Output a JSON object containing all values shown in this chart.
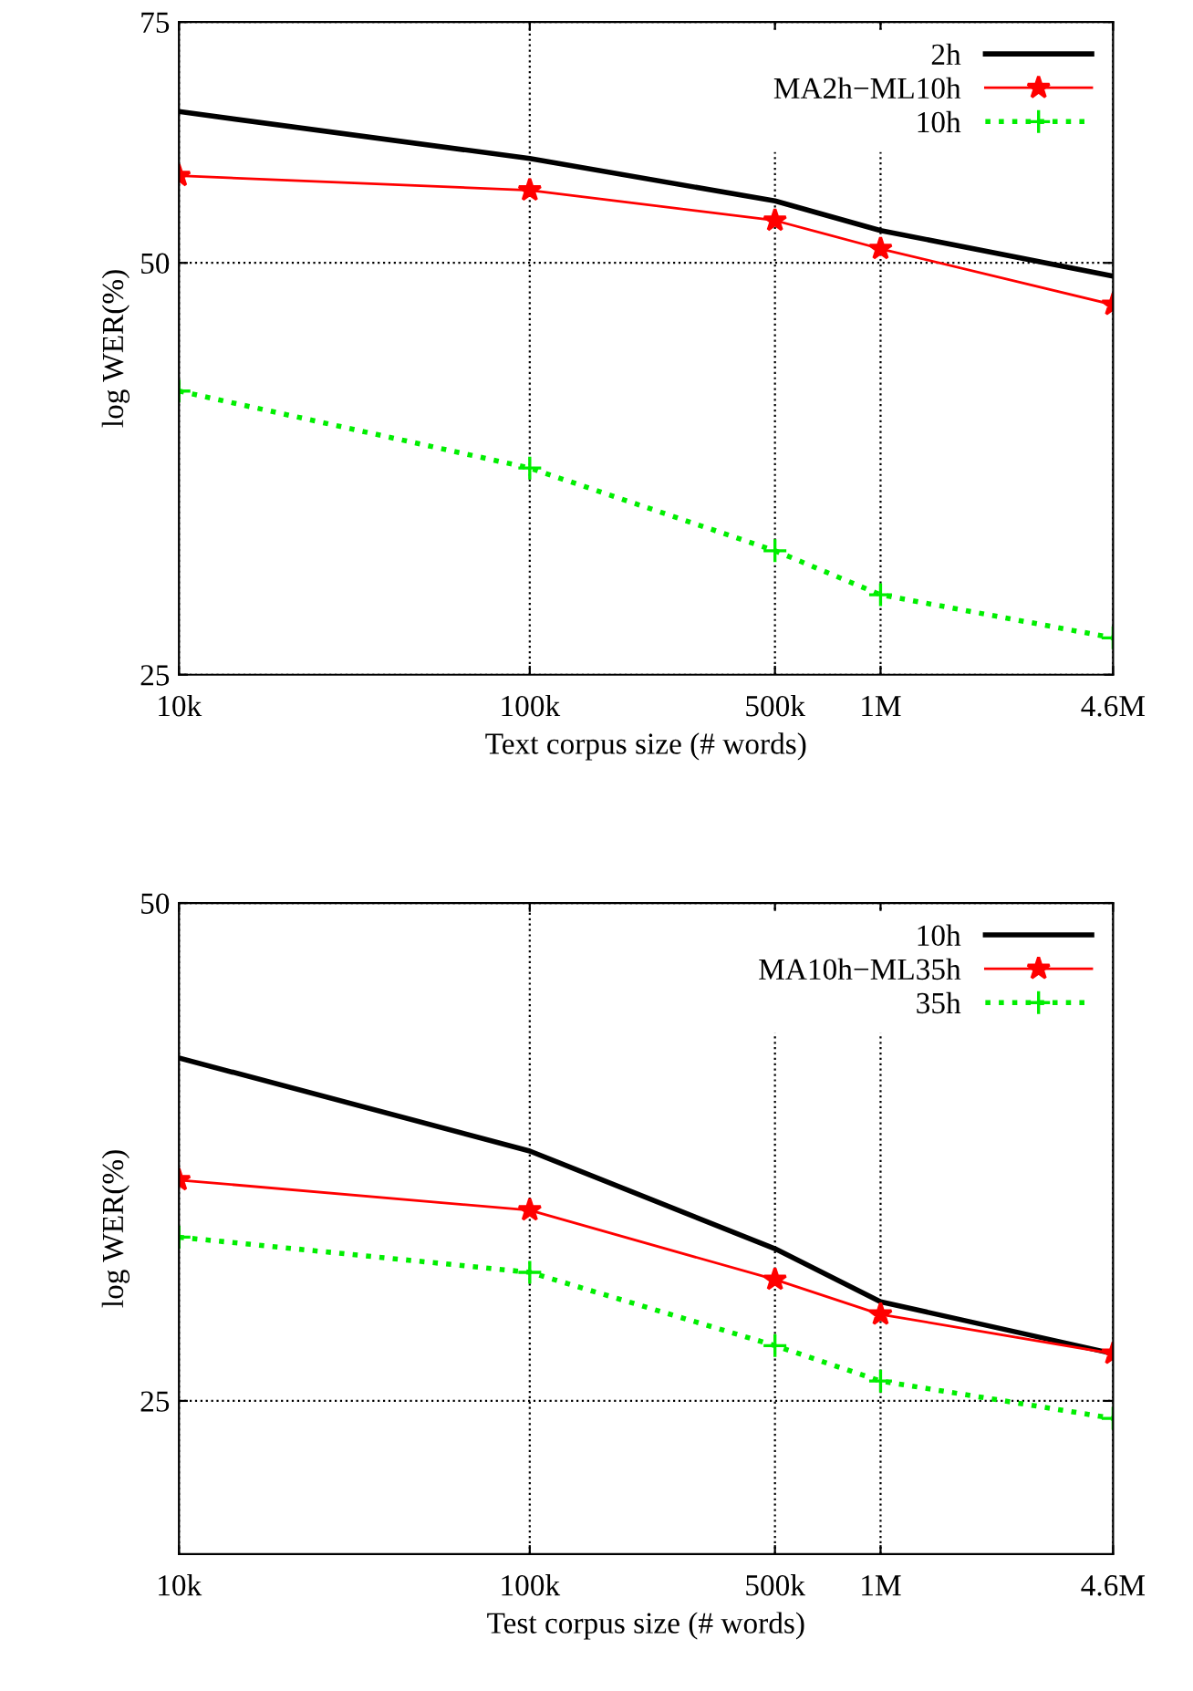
{
  "chart_data": [
    {
      "type": "line",
      "xlabel": "Text corpus size (# words)",
      "ylabel": "log WER(%)",
      "log": "xy",
      "grid": true,
      "legend": "top right",
      "x": [
        10000,
        100000,
        500000,
        1000000,
        4600000
      ],
      "xlim": [
        10000,
        4600000
      ],
      "xticks": [
        {
          "value": 10000,
          "label": "10k"
        },
        {
          "value": 100000,
          "label": "100k"
        },
        {
          "value": 500000,
          "label": "500k"
        },
        {
          "value": 1000000,
          "label": "1M"
        },
        {
          "value": 4600000,
          "label": "4.6M"
        }
      ],
      "ylim": [
        25,
        75
      ],
      "yticks": [
        25,
        50,
        75
      ],
      "series": [
        {
          "name": "2h",
          "color": "#000000",
          "values": [
            64.5,
            59.6,
            55.5,
            52.8,
            48.9
          ],
          "marker": "none",
          "line_style": "solid"
        },
        {
          "name": "MA2h−ML10h",
          "color": "#ff0000",
          "values": [
            57.9,
            56.5,
            53.7,
            51.2,
            46.6
          ],
          "marker": "star",
          "line_style": "solid"
        },
        {
          "name": "10h",
          "color": "#00ee00",
          "values": [
            40.3,
            35.4,
            30.8,
            28.6,
            26.6
          ],
          "marker": "cross",
          "line_style": "dotted"
        }
      ]
    },
    {
      "type": "line",
      "xlabel": "Test corpus size (# words)",
      "ylabel": "log WER(%)",
      "log": "xy",
      "grid": true,
      "legend": "top right",
      "x": [
        10000,
        100000,
        500000,
        1000000,
        4600000
      ],
      "xlim": [
        10000,
        4600000
      ],
      "xticks": [
        {
          "value": 10000,
          "label": "10k"
        },
        {
          "value": 100000,
          "label": "100k"
        },
        {
          "value": 500000,
          "label": "500k"
        },
        {
          "value": 1000000,
          "label": "1M"
        },
        {
          "value": 4600000,
          "label": "4.6M"
        }
      ],
      "ylim": [
        20.2,
        50
      ],
      "yticks": [
        25,
        50
      ],
      "series": [
        {
          "name": "10h",
          "color": "#000000",
          "values": [
            40.3,
            35.4,
            30.9,
            28.7,
            26.7
          ],
          "marker": "none",
          "line_style": "solid"
        },
        {
          "name": "MA10h−ML35h",
          "color": "#ff0000",
          "values": [
            34.0,
            32.6,
            29.6,
            28.2,
            26.7
          ],
          "marker": "star",
          "line_style": "solid"
        },
        {
          "name": "35h",
          "color": "#00ee00",
          "values": [
            31.4,
            29.9,
            27.0,
            25.7,
            24.4
          ],
          "marker": "cross",
          "line_style": "dotted"
        }
      ]
    }
  ]
}
